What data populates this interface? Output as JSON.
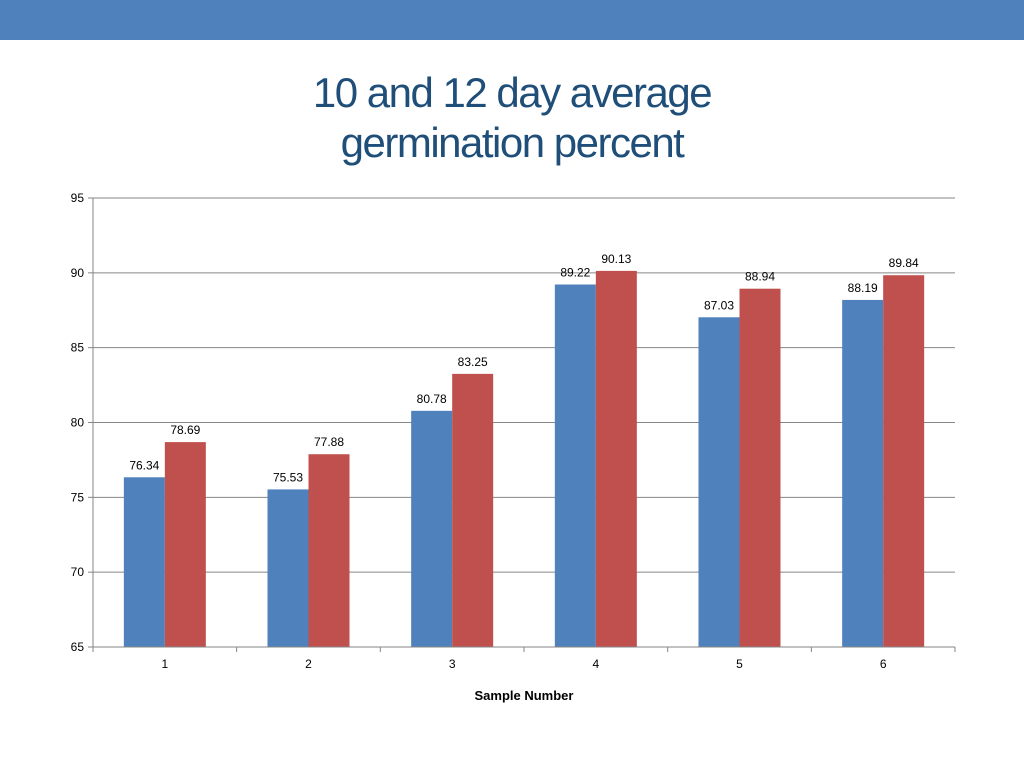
{
  "slide": {
    "bar_color": "#4f81bd"
  },
  "title": {
    "line1": "10 and 12 day average",
    "line2": "germination percent"
  },
  "chart_data": {
    "type": "bar",
    "categories": [
      "1",
      "2",
      "3",
      "4",
      "5",
      "6"
    ],
    "series": [
      {
        "values": [
          76.34,
          75.53,
          80.78,
          89.22,
          87.03,
          88.19
        ],
        "color": "#4f81bd"
      },
      {
        "values": [
          78.69,
          77.88,
          83.25,
          90.13,
          88.94,
          89.84
        ],
        "color": "#c0504d"
      }
    ],
    "data_labels": [
      [
        "76.34",
        "75.53",
        "80.78",
        "89.22",
        "87.03",
        "88.19"
      ],
      [
        "78.69",
        "77.88",
        "83.25",
        "90.13",
        "88.94",
        "89.84"
      ]
    ],
    "xlabel": "Sample Number",
    "ylabel": "",
    "ylim": [
      65,
      95
    ],
    "yticks": [
      65,
      70,
      75,
      80,
      85,
      90,
      95
    ],
    "grid": true,
    "legend": "none"
  }
}
